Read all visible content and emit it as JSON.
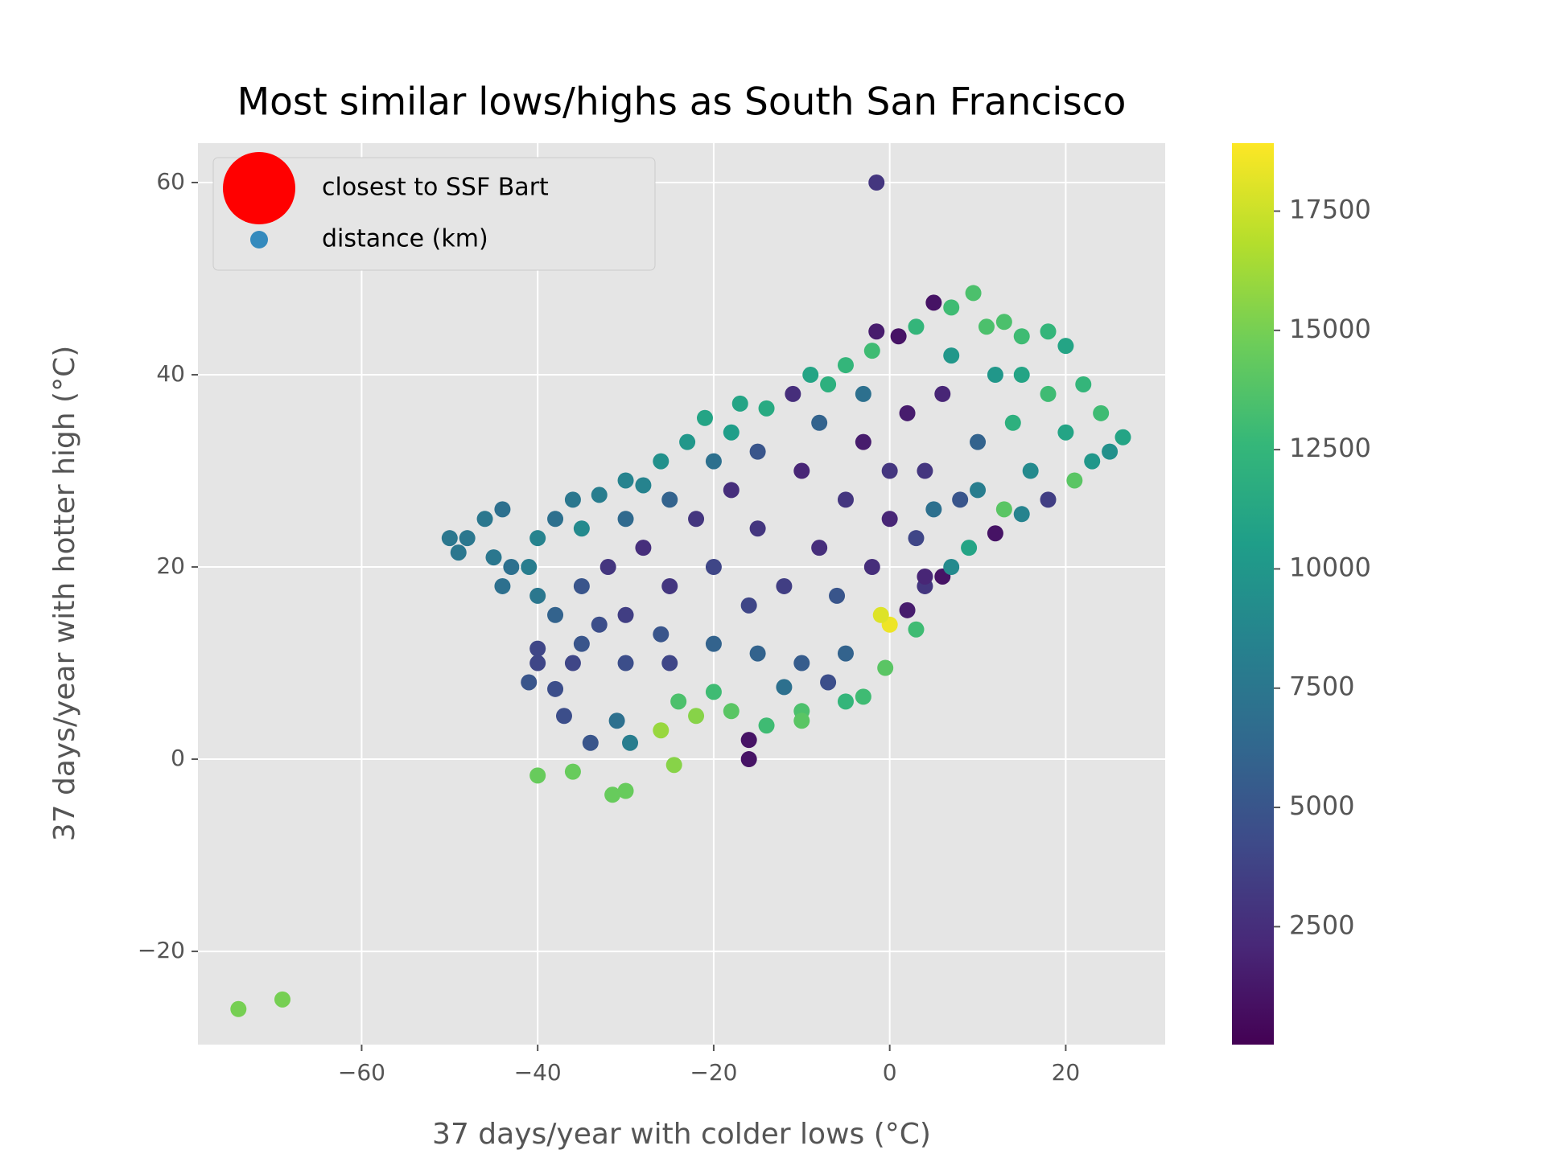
{
  "chart_data": {
    "type": "scatter",
    "title": "Most similar lows/highs as South San Francisco",
    "xlabel": "37 days/year with colder lows (°C)",
    "ylabel": "37 days/year with hotter high (°C)",
    "xlim": [
      -78.6,
      31.3
    ],
    "ylim": [
      -29.7,
      64.1
    ],
    "xticks": [
      {
        "value": -60,
        "label": "−60"
      },
      {
        "value": -40,
        "label": "−40"
      },
      {
        "value": -20,
        "label": "−20"
      },
      0,
      20
    ],
    "yticks": [
      {
        "value": -20,
        "label": "−20"
      },
      0,
      20,
      40,
      60
    ],
    "grid": true,
    "legend": "upper left",
    "colormap": "viridis",
    "clim": [
      28,
      18925
    ],
    "cticks": [
      2500,
      5000,
      7500,
      10000,
      12500,
      15000,
      17500
    ],
    "series": [
      {
        "name": "closest to SSF Bart",
        "color": "#ff0000",
        "x": [],
        "values": []
      },
      {
        "name": "distance (km)",
        "color": "#348abd",
        "x": [
          -74,
          -69,
          -1.5,
          -40,
          -36,
          -31.5,
          -30,
          -24.5,
          -16,
          -16,
          -34,
          -29.5,
          -26,
          -22,
          -24,
          -41,
          -38,
          -37,
          -31,
          -20,
          -18,
          -14,
          -10,
          -10,
          -5,
          -3,
          -0.5,
          0,
          -1,
          3,
          2,
          4,
          6,
          -40,
          -40,
          -35,
          -30,
          -25,
          -20,
          -15,
          -10,
          -7,
          -5,
          -12,
          -50,
          -48,
          -49,
          -46,
          -44,
          -45,
          -43,
          -44,
          -40,
          -41,
          -38,
          -36,
          -35,
          -33,
          -30,
          -28,
          -26,
          -23,
          -21,
          -18,
          -17,
          -14,
          -11,
          -9,
          -7,
          -5,
          -2,
          -1.5,
          1,
          3,
          5,
          7,
          9.5,
          11,
          13,
          15,
          18,
          20,
          22,
          24,
          26.5,
          25,
          23,
          21,
          18,
          15,
          12,
          9,
          7,
          4,
          -32,
          -30,
          -28,
          -25,
          -22,
          -20,
          -18,
          -15,
          -12,
          -10,
          -8,
          -5,
          -3,
          0,
          2,
          4,
          6,
          8,
          10,
          12,
          14,
          16,
          18,
          20,
          -35,
          -33,
          -36,
          -26,
          -16,
          -6,
          -2,
          0,
          3,
          5,
          10,
          13,
          -15,
          -25,
          -20,
          -8,
          -3,
          7,
          15,
          -30,
          -40,
          -38
        ],
        "values": [
          -26,
          -25,
          60,
          -1.7,
          -1.3,
          -3.7,
          -3.3,
          -0.6,
          0,
          2,
          1.7,
          1.7,
          3,
          4.5,
          6,
          8,
          7.3,
          4.5,
          4,
          7,
          5,
          3.5,
          5,
          4,
          6,
          6.5,
          9.5,
          14,
          15,
          13.5,
          15.5,
          18,
          19,
          11.5,
          10,
          12,
          10,
          10,
          12,
          11,
          10,
          8,
          11,
          7.5,
          23,
          23,
          21.5,
          25,
          26,
          21,
          20,
          18,
          17,
          20,
          25,
          27,
          24,
          27.5,
          29,
          28.5,
          31,
          33,
          35.5,
          34,
          37,
          36.5,
          38,
          40,
          39,
          41,
          42.5,
          44.5,
          44,
          45,
          47.5,
          47,
          48.5,
          45,
          45.5,
          44,
          44.5,
          43,
          39,
          36,
          33.5,
          32,
          31,
          29,
          27,
          25.5,
          23.5,
          22,
          20,
          19,
          20,
          15,
          22,
          18,
          25,
          20,
          28,
          24,
          18,
          30,
          22,
          27,
          33,
          25,
          36,
          30,
          38,
          27,
          33,
          40,
          35,
          30,
          38,
          34,
          18,
          14,
          10,
          13,
          16,
          17,
          20,
          30,
          23,
          26,
          28,
          26,
          32,
          27,
          31,
          35,
          38,
          42,
          40,
          25,
          23,
          15
        ],
        "color_values": [
          15000,
          15000,
          3000,
          14500,
          14500,
          14500,
          14500,
          15500,
          1000,
          1000,
          5000,
          8000,
          16000,
          15500,
          13500,
          5000,
          4500,
          4500,
          7000,
          13000,
          14000,
          13000,
          13500,
          14000,
          12500,
          13000,
          14000,
          18500,
          18000,
          13000,
          1500,
          3000,
          1000,
          4000,
          4000,
          5000,
          4500,
          4000,
          6000,
          6000,
          5500,
          4500,
          6000,
          7000,
          7500,
          7500,
          7500,
          7500,
          7000,
          7500,
          7000,
          7000,
          7500,
          8000,
          7000,
          7500,
          9000,
          8000,
          8500,
          8500,
          9500,
          10000,
          11000,
          10500,
          11000,
          11500,
          2500,
          11000,
          12000,
          12500,
          13000,
          1500,
          1000,
          12500,
          1000,
          13000,
          13500,
          13500,
          13500,
          13000,
          12500,
          11000,
          12500,
          13000,
          11000,
          9500,
          10000,
          14000,
          3500,
          8500,
          1000,
          11000,
          9000,
          2000,
          3000,
          3500,
          2500,
          3000,
          3000,
          4000,
          2500,
          3000,
          3500,
          2000,
          2500,
          3000,
          1500,
          2000,
          1500,
          3000,
          2000,
          5000,
          6000,
          10000,
          12000,
          9000,
          13000,
          11000,
          5000,
          4500,
          4000,
          5000,
          4000,
          5000,
          2500,
          3000,
          4000,
          7000,
          8000,
          14000,
          5000,
          6000,
          7000,
          6000,
          7000,
          10000,
          11000,
          6500,
          8500,
          6000
        ]
      }
    ]
  }
}
